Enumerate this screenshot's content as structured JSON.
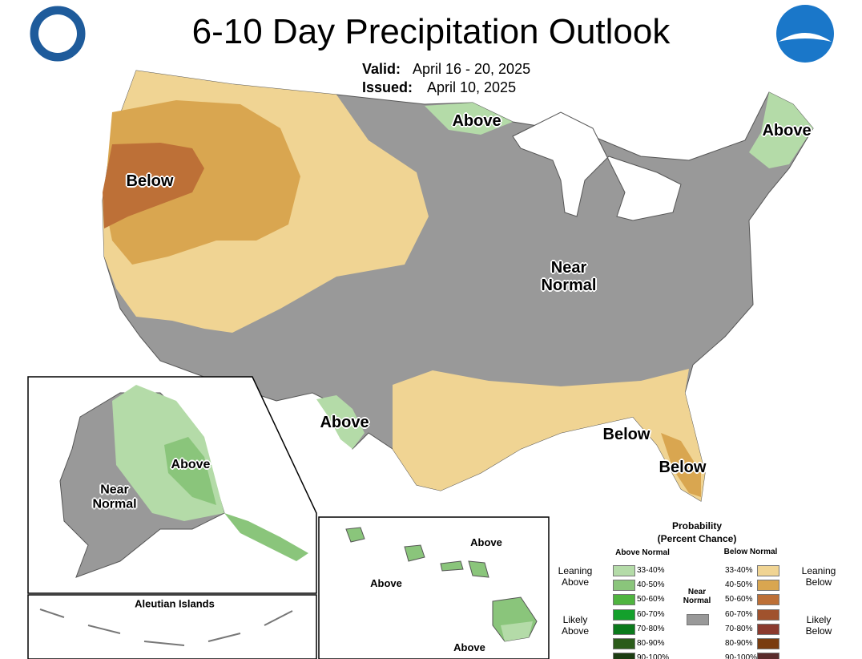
{
  "header": {
    "title": "6-10 Day Precipitation Outlook",
    "valid_label": "Valid:",
    "valid_date": "April 16 - 20, 2025",
    "issued_label": "Issued:",
    "issued_date": "April 10, 2025"
  },
  "conus_labels": [
    "Above",
    "Above",
    "Below",
    "Near Normal",
    "Above",
    "Below",
    "Below"
  ],
  "alaska": {
    "labels": [
      "Above",
      "Near Normal"
    ],
    "aleutian_title": "Aleutian Islands"
  },
  "hawaii": {
    "labels": [
      "Above",
      "Above",
      "Above"
    ]
  },
  "legend": {
    "title": "Probability",
    "subtitle": "(Percent Chance)",
    "above_header": "Above Normal",
    "below_header": "Below Normal",
    "leaning_above": "Leaning Above",
    "likely_above": "Likely Above",
    "near_normal": "Near Normal",
    "near_color": "#999999",
    "leaning_below": "Leaning Below",
    "likely_below": "Likely Below",
    "above_bins": [
      {
        "label": "33-40%",
        "color": "#b4dba8"
      },
      {
        "label": "40-50%",
        "color": "#8ac57b"
      },
      {
        "label": "50-60%",
        "color": "#4fb43f"
      },
      {
        "label": "60-70%",
        "color": "#14a02c"
      },
      {
        "label": "70-80%",
        "color": "#0b7a1c"
      },
      {
        "label": "80-90%",
        "color": "#2b5c1a"
      },
      {
        "label": "90-100%",
        "color": "#1c3d12"
      }
    ],
    "below_bins": [
      {
        "label": "33-40%",
        "color": "#f0d493"
      },
      {
        "label": "40-50%",
        "color": "#d9a650"
      },
      {
        "label": "50-60%",
        "color": "#bd7037"
      },
      {
        "label": "60-70%",
        "color": "#a0522d"
      },
      {
        "label": "70-80%",
        "color": "#8b3a2e"
      },
      {
        "label": "80-90%",
        "color": "#7a3c0f"
      },
      {
        "label": "90-100%",
        "color": "#5a2b2b"
      }
    ]
  }
}
